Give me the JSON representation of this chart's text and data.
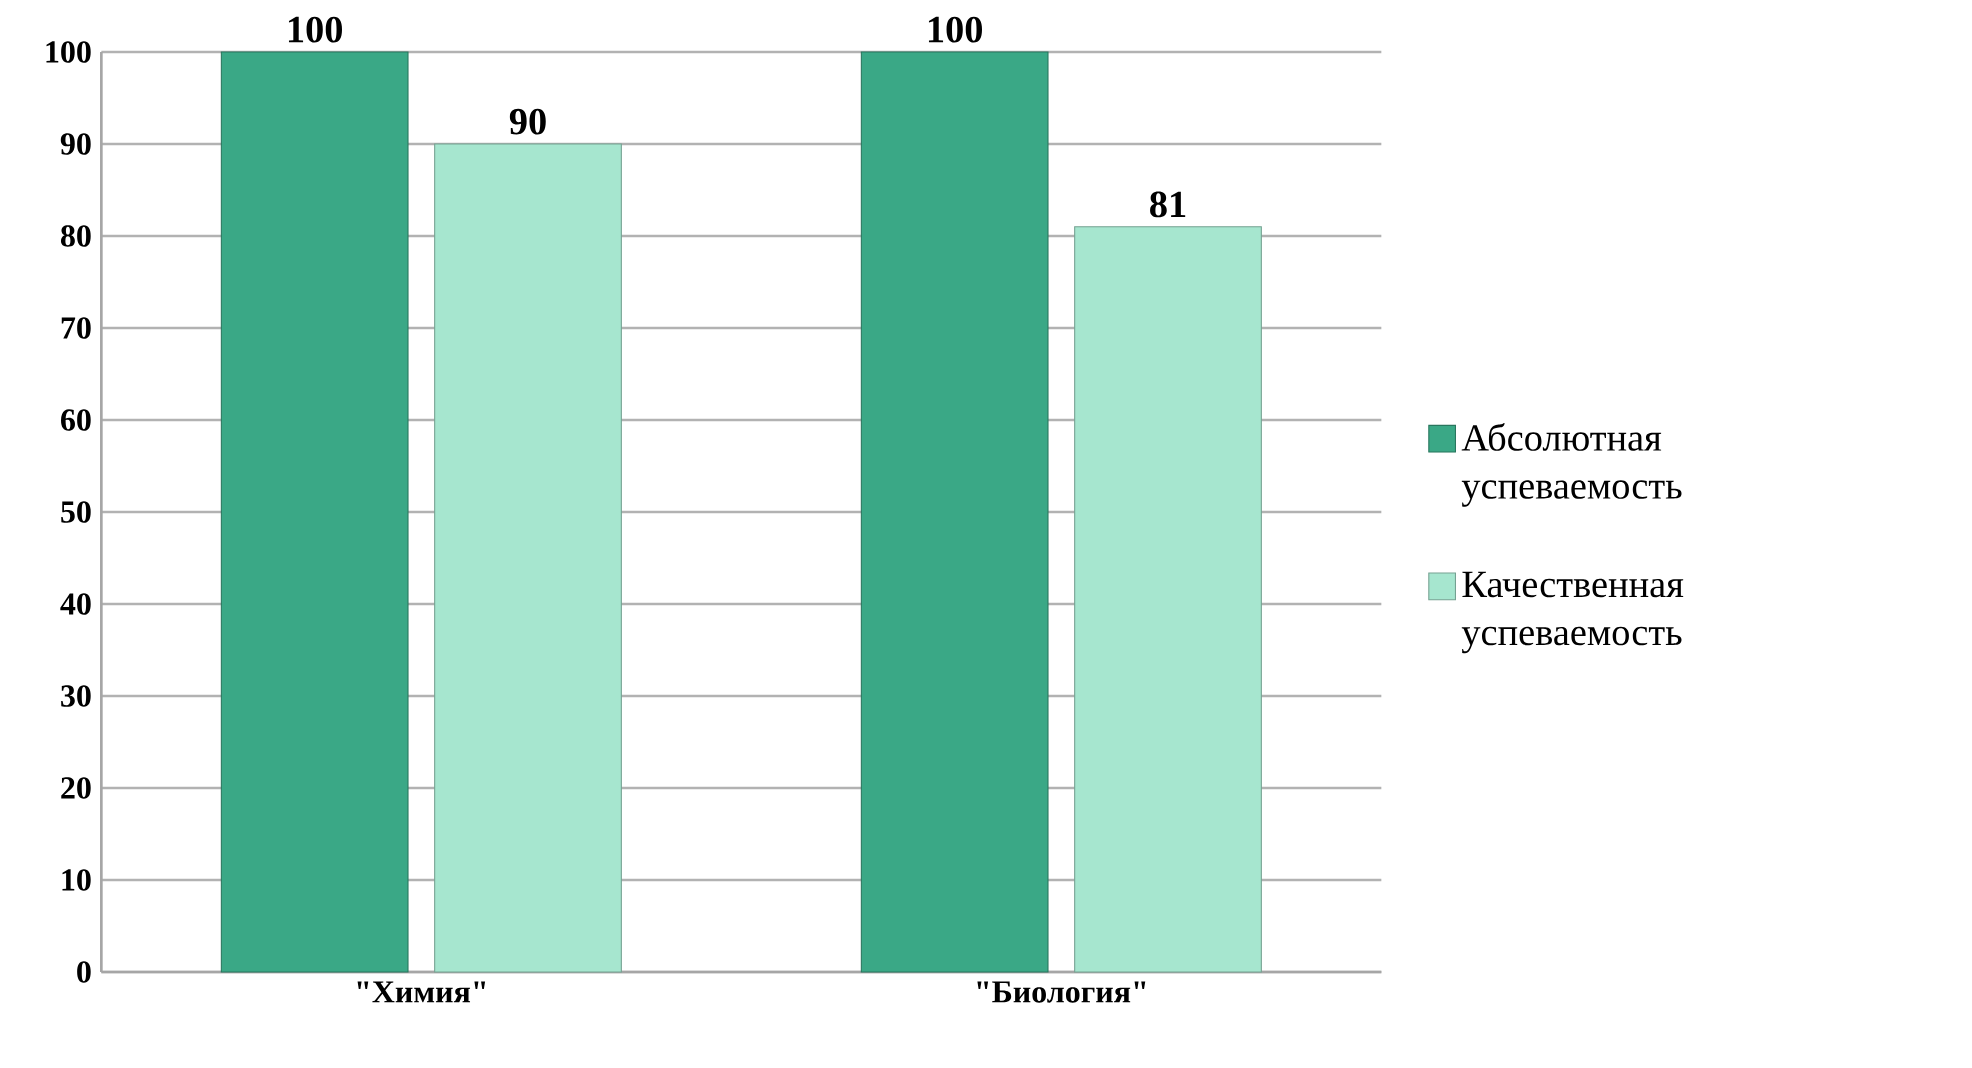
{
  "chart_data": {
    "type": "bar",
    "categories": [
      "\"Химия\"",
      "\"Биология\""
    ],
    "series": [
      {
        "name": "Абсолютная успеваемость",
        "color": "#3aa886",
        "values": [
          100,
          100
        ]
      },
      {
        "name": "Качественная успеваемость",
        "color": "#a6e6cf",
        "values": [
          90,
          81
        ]
      }
    ],
    "ylim": [
      0,
      100
    ],
    "yticks": [
      0,
      10,
      20,
      30,
      40,
      50,
      60,
      70,
      80,
      90,
      100
    ],
    "grid": "y",
    "legend": "right",
    "data_labels": true
  }
}
